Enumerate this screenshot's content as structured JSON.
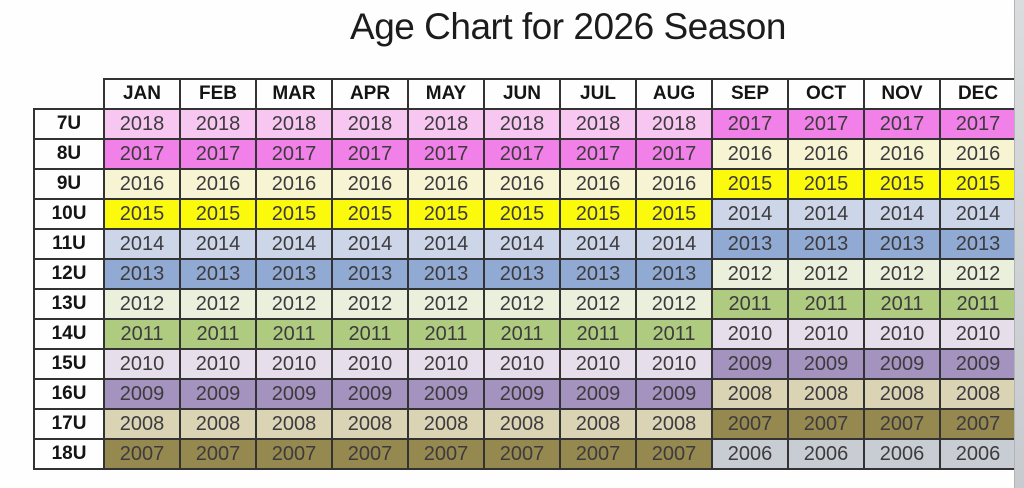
{
  "title": "Age Chart for 2026 Season",
  "chart_data": {
    "type": "table",
    "columns": [
      "JAN",
      "FEB",
      "MAR",
      "APR",
      "MAY",
      "JUN",
      "JUL",
      "AUG",
      "SEP",
      "OCT",
      "NOV",
      "DEC"
    ],
    "bands": [
      {
        "name": "jan-aug",
        "months": [
          "JAN",
          "FEB",
          "MAR",
          "APR",
          "MAY",
          "JUN",
          "JUL",
          "AUG"
        ]
      },
      {
        "name": "sep-dec",
        "months": [
          "SEP",
          "OCT",
          "NOV",
          "DEC"
        ]
      }
    ],
    "rows": [
      {
        "age_group": "7U",
        "band_years": [
          "2018",
          "2017"
        ]
      },
      {
        "age_group": "8U",
        "band_years": [
          "2017",
          "2016"
        ]
      },
      {
        "age_group": "9U",
        "band_years": [
          "2016",
          "2015"
        ]
      },
      {
        "age_group": "10U",
        "band_years": [
          "2015",
          "2014"
        ]
      },
      {
        "age_group": "11U",
        "band_years": [
          "2014",
          "2013"
        ]
      },
      {
        "age_group": "12U",
        "band_years": [
          "2013",
          "2012"
        ]
      },
      {
        "age_group": "13U",
        "band_years": [
          "2012",
          "2011"
        ]
      },
      {
        "age_group": "14U",
        "band_years": [
          "2011",
          "2010"
        ]
      },
      {
        "age_group": "15U",
        "band_years": [
          "2010",
          "2009"
        ]
      },
      {
        "age_group": "16U",
        "band_years": [
          "2009",
          "2008"
        ]
      },
      {
        "age_group": "17U",
        "band_years": [
          "2008",
          "2007"
        ]
      },
      {
        "age_group": "18U",
        "band_years": [
          "2007",
          "2006"
        ]
      }
    ],
    "year_colors": {
      "2018": "#f7c7f1",
      "2017": "#f180e8",
      "2016": "#f6f4d2",
      "2015": "#fbfa0c",
      "2014": "#ccd6e8",
      "2013": "#90aad3",
      "2012": "#eaf0db",
      "2011": "#aecb80",
      "2010": "#e6dfeb",
      "2009": "#a492bf",
      "2008": "#dad3b4",
      "2007": "#968950",
      "2006": "#c8cdd3"
    }
  }
}
